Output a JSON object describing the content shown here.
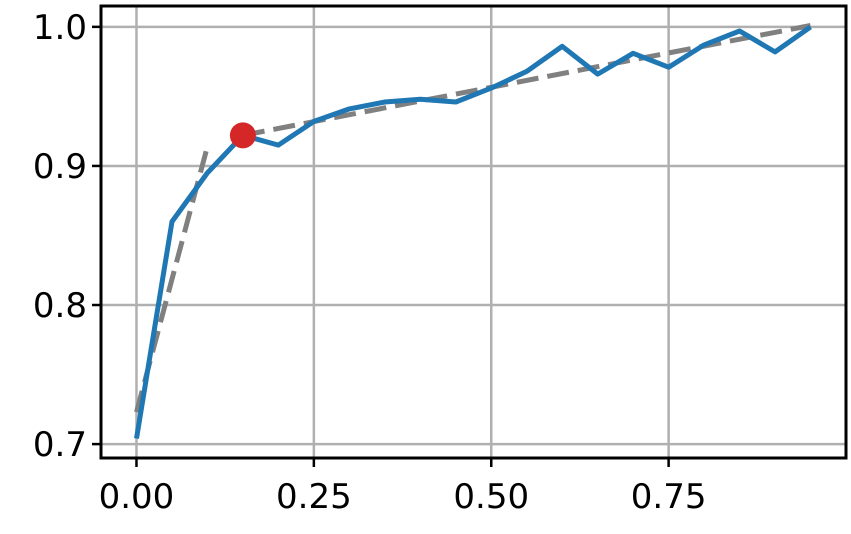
{
  "chart_data": {
    "type": "line",
    "title": "",
    "xlabel": "",
    "ylabel": "",
    "xlim": [
      -0.05,
      1.0
    ],
    "ylim": [
      0.69,
      1.015
    ],
    "xticks": [
      0.0,
      0.25,
      0.5,
      0.75
    ],
    "xtick_labels": [
      "0.00",
      "0.25",
      "0.50",
      "0.75"
    ],
    "yticks": [
      0.7,
      0.8,
      0.9,
      1.0
    ],
    "ytick_labels": [
      "0.7",
      "0.8",
      "0.9",
      "1.0"
    ],
    "grid": true,
    "series": [
      {
        "color": "#1f77b4",
        "style": "solid",
        "x": [
          0.0,
          0.05,
          0.1,
          0.15,
          0.2,
          0.25,
          0.3,
          0.35,
          0.4,
          0.45,
          0.5,
          0.55,
          0.6,
          0.65,
          0.7,
          0.75,
          0.8,
          0.85,
          0.9,
          0.95
        ],
        "y": [
          0.704,
          0.86,
          0.895,
          0.922,
          0.915,
          0.932,
          0.941,
          0.946,
          0.948,
          0.946,
          0.956,
          0.968,
          0.986,
          0.966,
          0.981,
          0.971,
          0.987,
          0.997,
          0.982,
          1.0
        ]
      },
      {
        "color": "#808080",
        "style": "dashed",
        "x": [
          0.0,
          0.1
        ],
        "y": [
          0.723,
          0.914
        ]
      },
      {
        "color": "#808080",
        "style": "dashed",
        "x": [
          0.15,
          0.95
        ],
        "y": [
          0.922,
          1.001
        ]
      }
    ],
    "highlight_point": {
      "x": 0.15,
      "y": 0.922,
      "color": "#d62728"
    }
  }
}
